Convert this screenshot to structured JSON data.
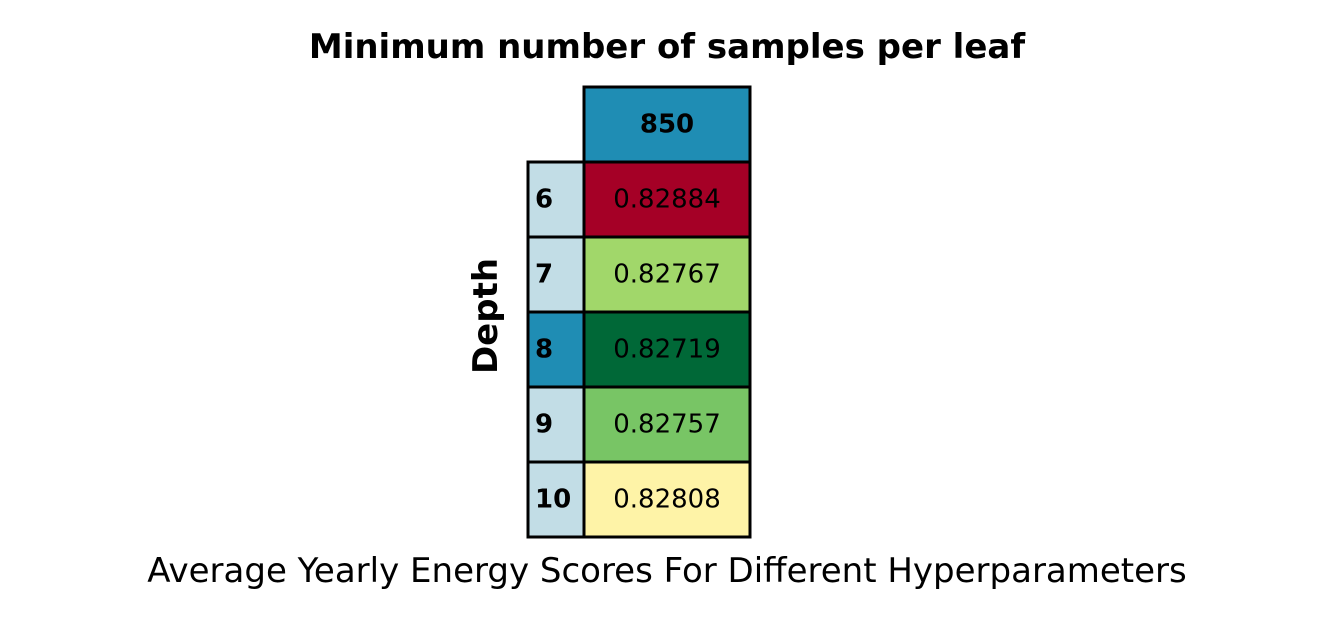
{
  "chart_data": {
    "type": "table",
    "title": "Minimum number of samples per leaf",
    "xlabel": "Average Yearly Energy Scores For Different Hyperparameters",
    "ylabel": "Depth",
    "column_headers": [
      "850"
    ],
    "row_headers": [
      "6",
      "7",
      "8",
      "9",
      "10"
    ],
    "values": [
      [
        0.82884
      ],
      [
        0.82767
      ],
      [
        0.82719
      ],
      [
        0.82757
      ],
      [
        0.82808
      ]
    ],
    "value_labels": [
      [
        "0.82884"
      ],
      [
        "0.82767"
      ],
      [
        "0.82719"
      ],
      [
        "0.82757"
      ],
      [
        "0.82808"
      ]
    ],
    "cell_colors": [
      [
        "#a50026"
      ],
      [
        "#a1d76a"
      ],
      [
        "#006837"
      ],
      [
        "#78c565"
      ],
      [
        "#fef3a7"
      ]
    ],
    "column_header_colors": [
      "#1f8db4"
    ],
    "row_header_colors": [
      "#c2dde6",
      "#c2dde6",
      "#1f8db4",
      "#c2dde6",
      "#c2dde6"
    ]
  }
}
